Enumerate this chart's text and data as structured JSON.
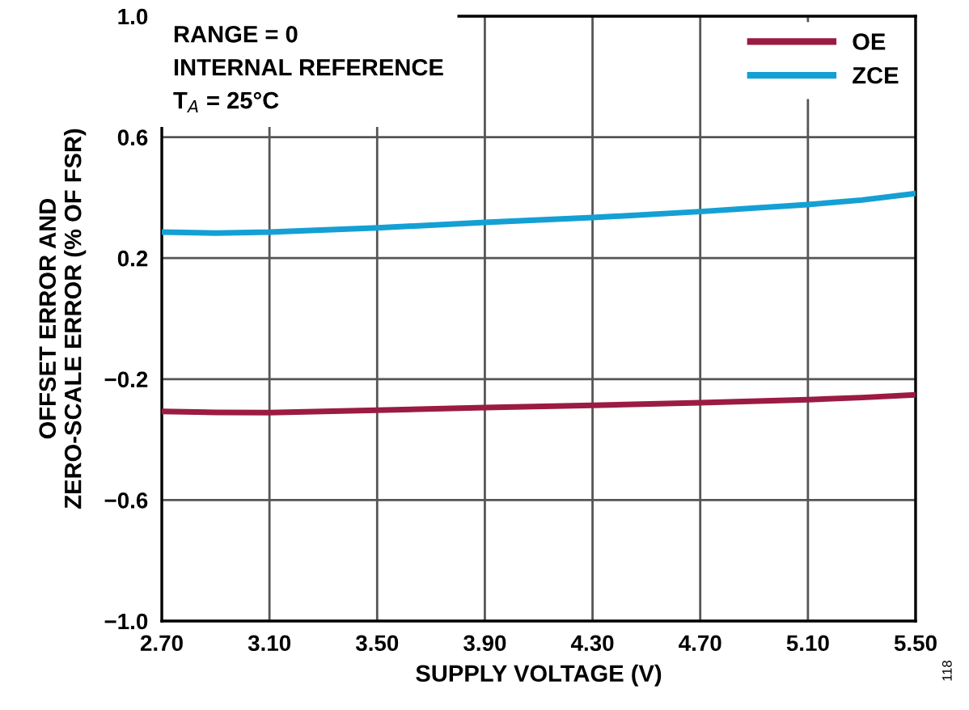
{
  "chart_data": {
    "type": "line",
    "xlabel": "SUPPLY VOLTAGE (V)",
    "ylabel": "OFFSET ERROR AND\nZERO-SCALE ERROR (% OF FSR)",
    "x": [
      2.7,
      2.9,
      3.1,
      3.5,
      3.9,
      4.3,
      4.7,
      5.1,
      5.3,
      5.5
    ],
    "series": [
      {
        "name": "OE",
        "color": "#9b1b43",
        "values": [
          -0.307,
          -0.31,
          -0.311,
          -0.303,
          -0.294,
          -0.287,
          -0.278,
          -0.268,
          -0.261,
          -0.252
        ]
      },
      {
        "name": "ZCE",
        "color": "#14a0d4",
        "values": [
          0.286,
          0.283,
          0.286,
          0.3,
          0.318,
          0.334,
          0.354,
          0.377,
          0.392,
          0.414
        ]
      }
    ],
    "xlim": [
      2.7,
      5.5
    ],
    "ylim": [
      -1.0,
      1.0
    ],
    "xticks": [
      {
        "value": 2.7,
        "label": "2.70"
      },
      {
        "value": 3.1,
        "label": "3.10"
      },
      {
        "value": 3.5,
        "label": "3.50"
      },
      {
        "value": 3.9,
        "label": "3.90"
      },
      {
        "value": 4.3,
        "label": "4.30"
      },
      {
        "value": 4.7,
        "label": "4.70"
      },
      {
        "value": 5.1,
        "label": "5.10"
      },
      {
        "value": 5.5,
        "label": "5.50"
      }
    ],
    "yticks": [
      {
        "value": -1.0,
        "label": "−1.0"
      },
      {
        "value": -0.6,
        "label": "−0.6"
      },
      {
        "value": -0.2,
        "label": "−0.2"
      },
      {
        "value": 0.2,
        "label": "0.2"
      },
      {
        "value": 0.6,
        "label": "0.6"
      },
      {
        "value": 1.0,
        "label": "1.0"
      }
    ],
    "grid": true,
    "legend": "top right",
    "annotations": [
      "RANGE = 0",
      "INTERNAL REFERENCE",
      "T$_{A}$ = 25°C",
      "118"
    ]
  }
}
